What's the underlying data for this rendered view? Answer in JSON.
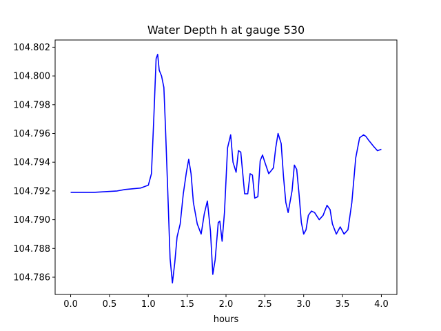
{
  "chart_data": {
    "type": "line",
    "title": "Water Depth h at gauge 530",
    "xlabel": "hours",
    "ylabel": "",
    "xlim": [
      -0.2,
      4.2
    ],
    "ylim": [
      104.7848,
      104.8025
    ],
    "grid": false,
    "x_ticks": [
      0.0,
      0.5,
      1.0,
      1.5,
      2.0,
      2.5,
      3.0,
      3.5,
      4.0
    ],
    "x_tick_labels": [
      "0.0",
      "0.5",
      "1.0",
      "1.5",
      "2.0",
      "2.5",
      "3.0",
      "3.5",
      "4.0"
    ],
    "y_ticks": [
      104.786,
      104.788,
      104.79,
      104.792,
      104.794,
      104.796,
      104.798,
      104.8,
      104.802
    ],
    "y_tick_labels": [
      "104.786",
      "104.788",
      "104.790",
      "104.792",
      "104.794",
      "104.796",
      "104.798",
      "104.800",
      "104.802"
    ],
    "series": [
      {
        "color": "#0000ff",
        "x": [
          0.0,
          0.3,
          0.6,
          0.7,
          0.9,
          1.0,
          1.04,
          1.07,
          1.1,
          1.12,
          1.14,
          1.17,
          1.2,
          1.22,
          1.25,
          1.28,
          1.31,
          1.34,
          1.37,
          1.41,
          1.45,
          1.49,
          1.52,
          1.55,
          1.58,
          1.63,
          1.68,
          1.72,
          1.76,
          1.8,
          1.83,
          1.86,
          1.9,
          1.92,
          1.95,
          1.98,
          2.02,
          2.06,
          2.09,
          2.13,
          2.16,
          2.19,
          2.24,
          2.28,
          2.31,
          2.34,
          2.37,
          2.41,
          2.44,
          2.47,
          2.5,
          2.55,
          2.58,
          2.61,
          2.64,
          2.67,
          2.71,
          2.74,
          2.77,
          2.8,
          2.85,
          2.88,
          2.91,
          2.94,
          2.97,
          3.0,
          3.03,
          3.06,
          3.1,
          3.14,
          3.2,
          3.25,
          3.3,
          3.34,
          3.37,
          3.42,
          3.47,
          3.52,
          3.57,
          3.62,
          3.67,
          3.72,
          3.77,
          3.8,
          3.84,
          3.9,
          3.95,
          4.0
        ],
        "y": [
          104.7919,
          104.7919,
          104.792,
          104.7921,
          104.7922,
          104.7924,
          104.7932,
          104.797,
          104.8012,
          104.8015,
          104.8004,
          104.8,
          104.7992,
          104.7965,
          104.792,
          104.7873,
          104.7856,
          104.787,
          104.7888,
          104.7897,
          104.7918,
          104.7933,
          104.7942,
          104.7932,
          104.7912,
          104.7897,
          104.789,
          104.7904,
          104.7913,
          104.7892,
          104.7862,
          104.7872,
          104.7898,
          104.7899,
          104.7885,
          104.7905,
          104.795,
          104.7959,
          104.794,
          104.7933,
          104.7948,
          104.7947,
          104.7918,
          104.7918,
          104.7932,
          104.7931,
          104.7915,
          104.7916,
          104.7941,
          104.7945,
          104.794,
          104.7932,
          104.7934,
          104.7936,
          104.795,
          104.796,
          104.7953,
          104.793,
          104.7912,
          104.7905,
          104.792,
          104.7938,
          104.7935,
          104.7918,
          104.7898,
          104.789,
          104.7893,
          104.7903,
          104.7906,
          104.7905,
          104.79,
          104.7903,
          104.791,
          104.7907,
          104.7897,
          104.789,
          104.7895,
          104.789,
          104.7893,
          104.7912,
          104.7943,
          104.7957,
          104.7959,
          104.7958,
          104.7955,
          104.7951,
          104.7948,
          104.7949
        ]
      }
    ]
  }
}
